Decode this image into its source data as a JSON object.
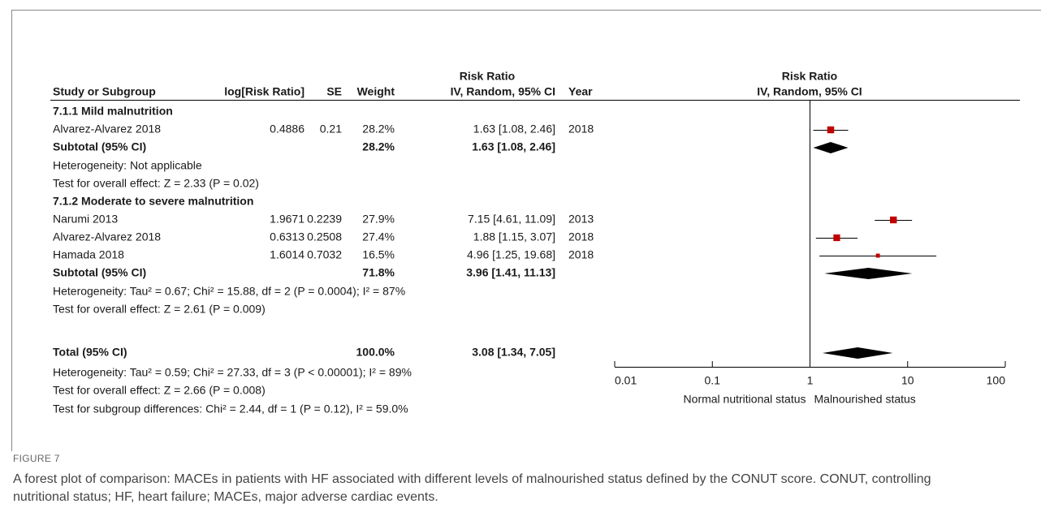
{
  "chart_data": {
    "type": "forest",
    "column_headers": [
      "Study or Subgroup",
      "log[Risk Ratio]",
      "SE",
      "Weight",
      "IV, Random, 95% CI",
      "Year"
    ],
    "effect_header": "Risk Ratio",
    "log_scale": true,
    "xlim": [
      0.01,
      100
    ],
    "xticks": [
      0.01,
      0.1,
      1,
      10,
      100
    ],
    "favours_left": "Normal nutritional status",
    "favours_right": "Malnourished status",
    "marker_color": "#c00000",
    "groups": [
      {
        "title": "7.1.1 Mild malnutrition",
        "studies": [
          {
            "name": "Alvarez-Alvarez 2018",
            "log_rr": 0.4886,
            "se": 0.21,
            "weight": 28.2,
            "weight_label": "28.2%",
            "rr": 1.63,
            "lo": 1.08,
            "hi": 2.46,
            "ci_label": "1.63 [1.08, 2.46]",
            "year": 2018
          }
        ],
        "subtotal": {
          "label": "Subtotal (95% CI)",
          "weight": 28.2,
          "weight_label": "28.2%",
          "rr": 1.63,
          "lo": 1.08,
          "hi": 2.46,
          "ci_label": "1.63 [1.08, 2.46]"
        },
        "heterogeneity": "Heterogeneity: Not applicable",
        "overall_effect": "Test for overall effect: Z = 2.33 (P = 0.02)"
      },
      {
        "title": "7.1.2 Moderate to severe malnutrition",
        "studies": [
          {
            "name": "Narumi 2013",
            "log_rr": 1.9671,
            "se": 0.2239,
            "weight": 27.9,
            "weight_label": "27.9%",
            "rr": 7.15,
            "lo": 4.61,
            "hi": 11.09,
            "ci_label": "7.15 [4.61, 11.09]",
            "year": 2013
          },
          {
            "name": "Alvarez-Alvarez 2018",
            "log_rr": 0.6313,
            "se": 0.2508,
            "weight": 27.4,
            "weight_label": "27.4%",
            "rr": 1.88,
            "lo": 1.15,
            "hi": 3.07,
            "ci_label": "1.88 [1.15, 3.07]",
            "year": 2018
          },
          {
            "name": "Hamada 2018",
            "log_rr": 1.6014,
            "se": 0.7032,
            "weight": 16.5,
            "weight_label": "16.5%",
            "rr": 4.96,
            "lo": 1.25,
            "hi": 19.68,
            "ci_label": "4.96 [1.25, 19.68]",
            "year": 2018
          }
        ],
        "subtotal": {
          "label": "Subtotal (95% CI)",
          "weight": 71.8,
          "weight_label": "71.8%",
          "rr": 3.96,
          "lo": 1.41,
          "hi": 11.13,
          "ci_label": "3.96 [1.41, 11.13]"
        },
        "heterogeneity": "Heterogeneity: Tau² = 0.67; Chi² = 15.88, df = 2 (P = 0.0004); I² = 87%",
        "overall_effect": "Test for overall effect: Z = 2.61 (P = 0.009)"
      }
    ],
    "total": {
      "label": "Total (95% CI)",
      "weight": 100,
      "weight_label": "100.0%",
      "rr": 3.08,
      "lo": 1.34,
      "hi": 7.05,
      "ci_label": "3.08 [1.34, 7.05]",
      "heterogeneity": "Heterogeneity: Tau² = 0.59; Chi² = 27.33, df = 3 (P < 0.00001); I² = 89%",
      "overall_effect": "Test for overall effect: Z = 2.66 (P = 0.008)",
      "subgroup_test": "Test for subgroup differences: Chi² = 2.44, df = 1 (P = 0.12), I² = 59.0%"
    }
  },
  "figure": {
    "label": "FIGURE 7",
    "caption": "A forest plot of comparison: MACEs in patients with HF associated with different levels of malnourished status defined by the CONUT score. CONUT, controlling nutritional status; HF, heart failure; MACEs, major adverse cardiac events."
  }
}
